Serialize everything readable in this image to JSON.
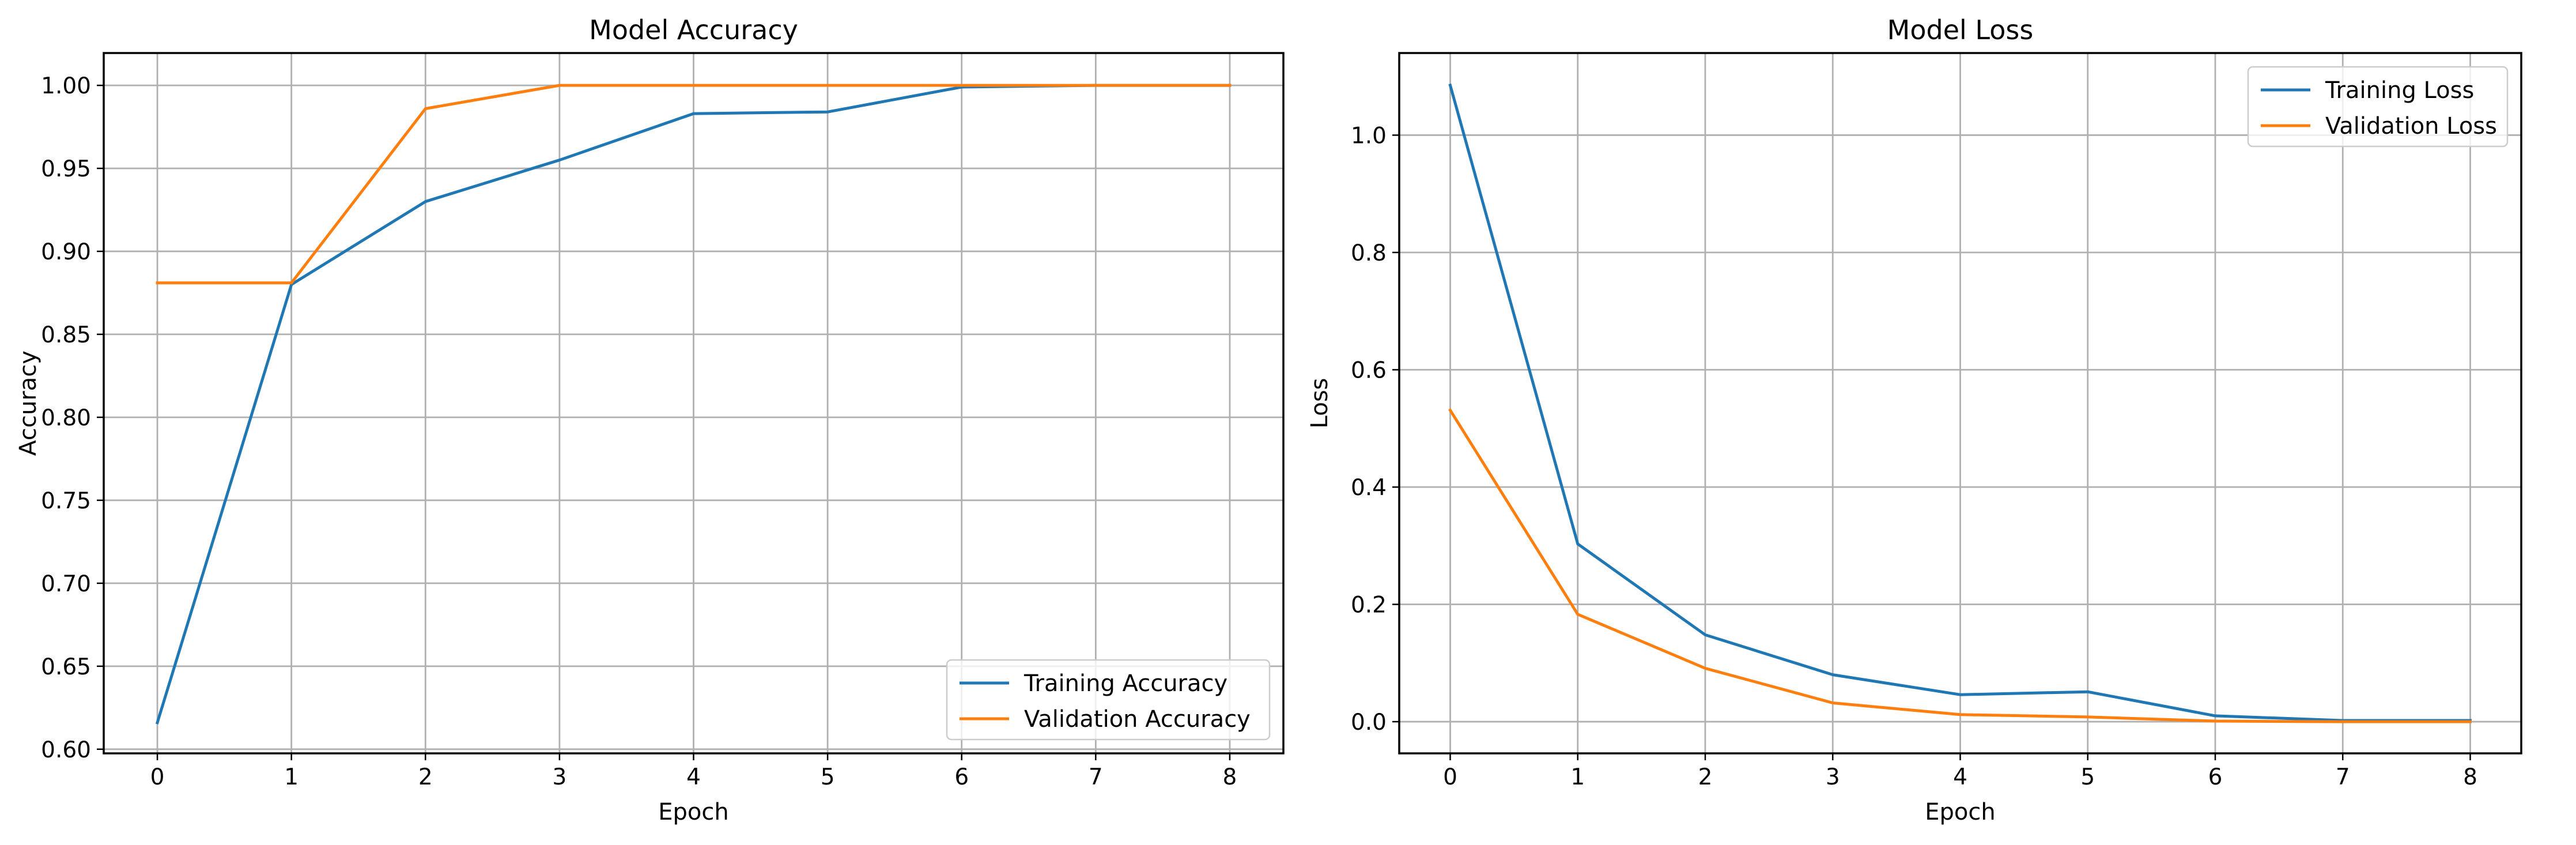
{
  "chart_data": [
    {
      "type": "line",
      "title": "Model Accuracy",
      "xlabel": "Epoch",
      "ylabel": "Accuracy",
      "xlim": [
        -0.4,
        8.4
      ],
      "ylim": [
        0.5975,
        1.0195
      ],
      "x_ticks": [
        0,
        1,
        2,
        3,
        4,
        5,
        6,
        7,
        8
      ],
      "x_tick_labels": [
        "0",
        "1",
        "2",
        "3",
        "4",
        "5",
        "6",
        "7",
        "8"
      ],
      "y_ticks": [
        0.6,
        0.65,
        0.7,
        0.75,
        0.8,
        0.85,
        0.9,
        0.95,
        1.0
      ],
      "y_tick_labels": [
        "0.60",
        "0.65",
        "0.70",
        "0.75",
        "0.80",
        "0.85",
        "0.90",
        "0.95",
        "1.00"
      ],
      "grid": true,
      "legend_position": "bottom-right",
      "x": [
        0,
        1,
        2,
        3,
        4,
        5,
        6,
        7,
        8
      ],
      "series": [
        {
          "name": "Training Accuracy",
          "color": "#1f77b4",
          "values": [
            0.616,
            0.88,
            0.93,
            0.955,
            0.983,
            0.984,
            0.999,
            1.0,
            1.0
          ]
        },
        {
          "name": "Validation Accuracy",
          "color": "#ff7f0e",
          "values": [
            0.881,
            0.881,
            0.986,
            1.0,
            1.0,
            1.0,
            1.0,
            1.0,
            1.0
          ]
        }
      ]
    },
    {
      "type": "line",
      "title": "Model Loss",
      "xlabel": "Epoch",
      "ylabel": "Loss",
      "xlim": [
        -0.4,
        8.4
      ],
      "ylim": [
        -0.054,
        1.14
      ],
      "x_ticks": [
        0,
        1,
        2,
        3,
        4,
        5,
        6,
        7,
        8
      ],
      "x_tick_labels": [
        "0",
        "1",
        "2",
        "3",
        "4",
        "5",
        "6",
        "7",
        "8"
      ],
      "y_ticks": [
        0.0,
        0.2,
        0.4,
        0.6,
        0.8,
        1.0
      ],
      "y_tick_labels": [
        "0.0",
        "0.2",
        "0.4",
        "0.6",
        "0.8",
        "1.0"
      ],
      "grid": true,
      "legend_position": "top-right",
      "x": [
        0,
        1,
        2,
        3,
        4,
        5,
        6,
        7,
        8
      ],
      "series": [
        {
          "name": "Training Loss",
          "color": "#1f77b4",
          "values": [
            1.085,
            0.303,
            0.148,
            0.08,
            0.046,
            0.051,
            0.01,
            0.002,
            0.002
          ]
        },
        {
          "name": "Validation Loss",
          "color": "#ff7f0e",
          "values": [
            0.531,
            0.183,
            0.091,
            0.032,
            0.012,
            0.008,
            0.001,
            0.0,
            0.0
          ]
        }
      ]
    }
  ]
}
